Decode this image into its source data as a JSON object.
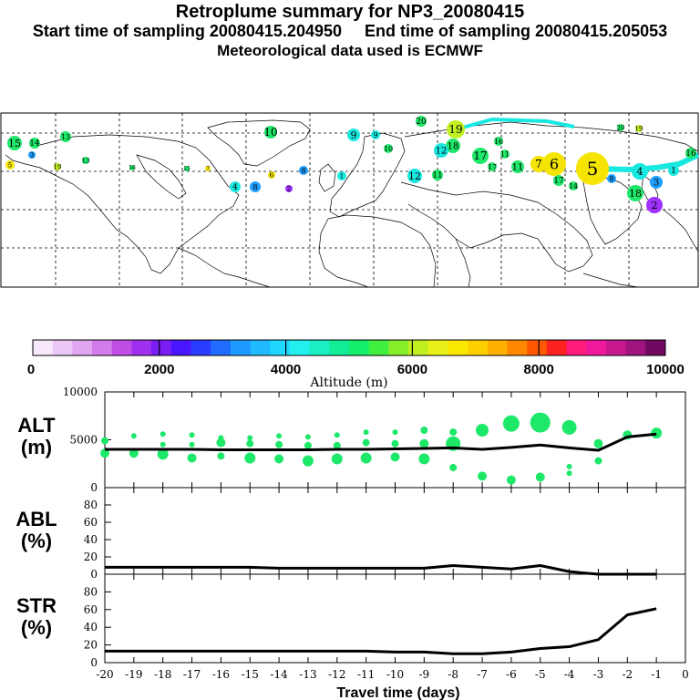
{
  "header": {
    "title": "Retroplume summary for NP3_20080415",
    "sampling": "Start time of sampling 20080415.204950     End time of sampling 20080415.205053",
    "met": "Meteorological data used is ECMWF"
  },
  "colors": {
    "plume_green": "#1ee86a",
    "plume_cyan": "#17e8e0",
    "plume_blue": "#1f9fff",
    "plume_purple": "#a032ff",
    "plume_yellow": "#f5e400",
    "line": "#000000"
  },
  "colorbar": {
    "label": "Altitude (m)",
    "ticks": [
      "0",
      "2000",
      "4000",
      "6000",
      "8000",
      "10000"
    ],
    "colors": [
      "#f7e8fb",
      "#ecc8f6",
      "#e0a6f0",
      "#d37ceb",
      "#c04de6",
      "#a030f0",
      "#7a1df5",
      "#4a16ff",
      "#2a3cff",
      "#1f6cff",
      "#1f98ff",
      "#1fbaff",
      "#20d8ff",
      "#20f0ee",
      "#18f0c4",
      "#12ee98",
      "#14ee6a",
      "#40ee40",
      "#86ee2a",
      "#c0f020",
      "#eaf01a",
      "#fbe800",
      "#ffd000",
      "#ffb000",
      "#ff8800",
      "#ff5800",
      "#ff2020",
      "#ff1c7c",
      "#f0189c",
      "#c81890",
      "#a01480",
      "#700a60"
    ]
  },
  "map": {
    "labels": [
      {
        "t": "20",
        "c": "#1ee86a"
      },
      {
        "t": "19",
        "c": "#c0f020"
      },
      {
        "t": "18",
        "c": "#1ee86a"
      },
      {
        "t": "17",
        "c": "#1ee86a"
      },
      {
        "t": "16",
        "c": "#1ee86a"
      },
      {
        "t": "15",
        "c": "#1ee86a"
      },
      {
        "t": "14",
        "c": "#1ee86a"
      },
      {
        "t": "13",
        "c": "#1ee86a"
      },
      {
        "t": "12",
        "c": "#17e8e0"
      },
      {
        "t": "11",
        "c": "#1ee86a"
      },
      {
        "t": "10",
        "c": "#1ee86a"
      },
      {
        "t": "9",
        "c": "#17e8e0"
      },
      {
        "t": "8",
        "c": "#1f9fff"
      },
      {
        "t": "7",
        "c": "#f5e400"
      },
      {
        "t": "6",
        "c": "#f5e400"
      },
      {
        "t": "5",
        "c": "#f5e400"
      },
      {
        "t": "4",
        "c": "#17e8e0"
      },
      {
        "t": "3",
        "c": "#1f9fff"
      },
      {
        "t": "2",
        "c": "#a032ff"
      },
      {
        "t": "1",
        "c": "#17e8e0"
      }
    ]
  },
  "chart_data": [
    {
      "type": "line",
      "name": "ALT",
      "ylabel": "ALT\n(m)",
      "ylabel_line1": "ALT",
      "ylabel_line2": "(m)",
      "ylim": [
        0,
        10000
      ],
      "yticks": [
        "10000",
        "5000",
        "0"
      ],
      "x": [
        -20,
        -19,
        -18,
        -17,
        -16,
        -15,
        -14,
        -13,
        -12,
        -11,
        -10,
        -9,
        -8,
        -7,
        -6,
        -5,
        -4,
        -3,
        -2,
        -1
      ],
      "values": [
        4000,
        4000,
        4000,
        4000,
        3950,
        3950,
        3950,
        3950,
        4000,
        4000,
        4050,
        4100,
        4150,
        4000,
        4200,
        4450,
        4150,
        3900,
        5300,
        5600
      ],
      "clusters": [
        {
          "x": -20,
          "alts": [
            4900,
            3600
          ],
          "sizes": [
            4,
            5
          ]
        },
        {
          "x": -19,
          "alts": [
            5400,
            3600
          ],
          "sizes": [
            3,
            5
          ]
        },
        {
          "x": -18,
          "alts": [
            5600,
            4500,
            3500
          ],
          "sizes": [
            3,
            3,
            6
          ]
        },
        {
          "x": -17,
          "alts": [
            5500,
            4500,
            3100
          ],
          "sizes": [
            3,
            3,
            5
          ]
        },
        {
          "x": -16,
          "alts": [
            5200,
            4700,
            3300
          ],
          "sizes": [
            3,
            5,
            4
          ]
        },
        {
          "x": -15,
          "alts": [
            5200,
            4600,
            3100
          ],
          "sizes": [
            3,
            4,
            6
          ]
        },
        {
          "x": -14,
          "alts": [
            5400,
            4500,
            3000
          ],
          "sizes": [
            3,
            4,
            5
          ]
        },
        {
          "x": -13,
          "alts": [
            5300,
            4400,
            2800
          ],
          "sizes": [
            3,
            4,
            6
          ]
        },
        {
          "x": -12,
          "alts": [
            5500,
            4400,
            3000
          ],
          "sizes": [
            3,
            4,
            6
          ]
        },
        {
          "x": -11,
          "alts": [
            5800,
            4700,
            3100
          ],
          "sizes": [
            3,
            4,
            6
          ]
        },
        {
          "x": -10,
          "alts": [
            5800,
            4600,
            3200
          ],
          "sizes": [
            3,
            4,
            5
          ]
        },
        {
          "x": -9,
          "alts": [
            6000,
            4600,
            3000
          ],
          "sizes": [
            4,
            5,
            6
          ]
        },
        {
          "x": -8,
          "alts": [
            5800,
            4600,
            2100
          ],
          "sizes": [
            4,
            8,
            4
          ]
        },
        {
          "x": -7,
          "alts": [
            6000,
            1200
          ],
          "sizes": [
            7,
            5
          ]
        },
        {
          "x": -6,
          "alts": [
            6700,
            800
          ],
          "sizes": [
            9,
            5
          ]
        },
        {
          "x": -5,
          "alts": [
            6800,
            1100
          ],
          "sizes": [
            11,
            5
          ]
        },
        {
          "x": -4,
          "alts": [
            6300,
            2200,
            1500
          ],
          "sizes": [
            8,
            3,
            3
          ]
        },
        {
          "x": -3,
          "alts": [
            4600,
            2800
          ],
          "sizes": [
            5,
            4
          ]
        },
        {
          "x": -2,
          "alts": [
            5500
          ],
          "sizes": [
            5
          ]
        },
        {
          "x": -1,
          "alts": [
            5700
          ],
          "sizes": [
            6
          ]
        }
      ]
    },
    {
      "type": "line",
      "name": "ABL",
      "ylabel_line1": "ABL",
      "ylabel_line2": "(%)",
      "ylim": [
        0,
        100
      ],
      "yticks": [
        "80",
        "60",
        "40",
        "20",
        "0"
      ],
      "x": [
        -20,
        -19,
        -18,
        -17,
        -16,
        -15,
        -14,
        -13,
        -12,
        -11,
        -10,
        -9,
        -8,
        -7,
        -6,
        -5,
        -4,
        -3,
        -2,
        -1
      ],
      "values": [
        8,
        8,
        8,
        8,
        8,
        8,
        7,
        7,
        7,
        7,
        7,
        7,
        10,
        8,
        6,
        10,
        3,
        0,
        0,
        0
      ]
    },
    {
      "type": "line",
      "name": "STR",
      "ylabel_line1": "STR",
      "ylabel_line2": "(%)",
      "ylim": [
        0,
        100
      ],
      "yticks": [
        "80",
        "60",
        "40",
        "20",
        "0"
      ],
      "x": [
        -20,
        -19,
        -18,
        -17,
        -16,
        -15,
        -14,
        -13,
        -12,
        -11,
        -10,
        -9,
        -8,
        -7,
        -6,
        -5,
        -4,
        -3,
        -2,
        -1
      ],
      "values": [
        13,
        13,
        13,
        13,
        13,
        13,
        13,
        13,
        13,
        13,
        12,
        12,
        10,
        10,
        12,
        16,
        18,
        26,
        54,
        61
      ],
      "xlabel": "Travel time (days)",
      "xticks": [
        "-20",
        "-19",
        "-18",
        "-17",
        "-16",
        "-15",
        "-14",
        "-13",
        "-12",
        "-11",
        "-10",
        "-9",
        "-8",
        "-7",
        "-6",
        "-5",
        "-4",
        "-3",
        "-2",
        "-1",
        "0"
      ]
    }
  ]
}
